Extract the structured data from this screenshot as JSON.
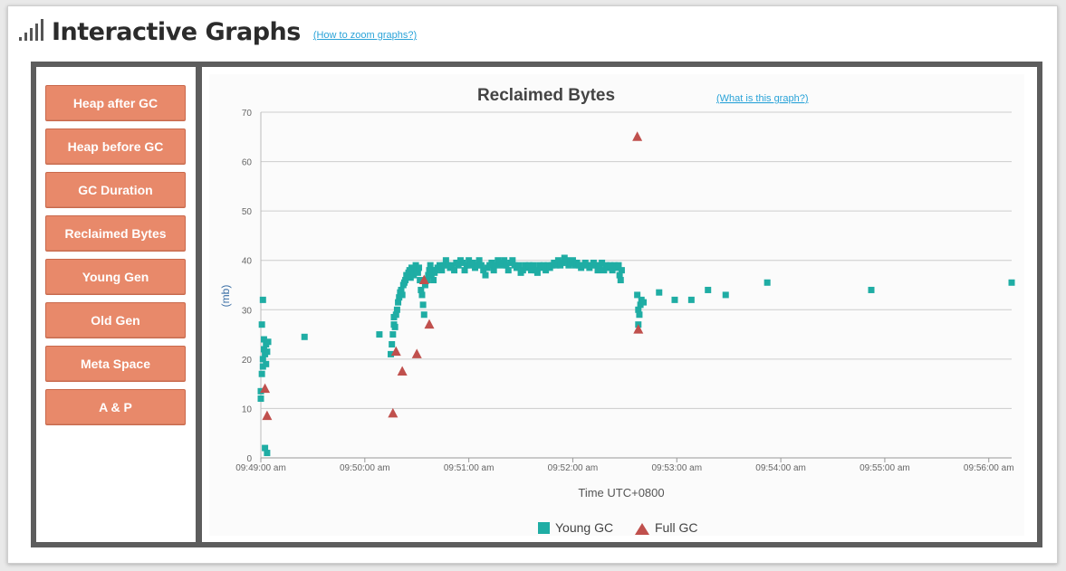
{
  "header": {
    "title": "Interactive Graphs",
    "help_link": "(How to zoom graphs?)"
  },
  "sidebar": {
    "items": [
      {
        "label": "Heap after GC"
      },
      {
        "label": "Heap before GC"
      },
      {
        "label": "GC Duration"
      },
      {
        "label": "Reclaimed Bytes"
      },
      {
        "label": "Young Gen"
      },
      {
        "label": "Old Gen"
      },
      {
        "label": "Meta Space"
      },
      {
        "label": "A & P"
      }
    ]
  },
  "chart_info": {
    "help_link": "(What is this graph?)"
  },
  "colors": {
    "button": "#e8896a",
    "young_gc": "#1fada4",
    "full_gc": "#c0504d",
    "link": "#2aa3d8"
  },
  "chart_data": {
    "type": "scatter",
    "title": "Reclaimed Bytes",
    "xlabel": "Time UTC+0800",
    "ylabel": "(mb)",
    "ylim": [
      0,
      70
    ],
    "yticks": [
      0,
      10,
      20,
      30,
      40,
      50,
      60,
      70
    ],
    "xlim_minutes": [
      0,
      7.22
    ],
    "xticks": [
      "09:49:00 am",
      "09:50:00 am",
      "09:51:00 am",
      "09:52:00 am",
      "09:53:00 am",
      "09:54:00 am",
      "09:55:00 am",
      "09:56:00 am"
    ],
    "grid": true,
    "legend": "bottom-center",
    "series": [
      {
        "name": "Young GC",
        "marker": "square",
        "points": [
          [
            0.0,
            12
          ],
          [
            0.0,
            13.5
          ],
          [
            0.01,
            27
          ],
          [
            0.02,
            32
          ],
          [
            0.01,
            17
          ],
          [
            0.02,
            18.5
          ],
          [
            0.02,
            20
          ],
          [
            0.03,
            22
          ],
          [
            0.03,
            24
          ],
          [
            0.04,
            21
          ],
          [
            0.05,
            23
          ],
          [
            0.05,
            19
          ],
          [
            0.06,
            21.5
          ],
          [
            0.07,
            23.5
          ],
          [
            0.04,
            2
          ],
          [
            0.06,
            1
          ],
          [
            0.42,
            24.5
          ],
          [
            1.14,
            25
          ],
          [
            1.25,
            21
          ],
          [
            1.26,
            23
          ],
          [
            1.27,
            25
          ],
          [
            1.28,
            27
          ],
          [
            1.28,
            28.5
          ],
          [
            1.29,
            26.5
          ],
          [
            1.3,
            29
          ],
          [
            1.31,
            30
          ],
          [
            1.32,
            31.5
          ],
          [
            1.33,
            32.5
          ],
          [
            1.34,
            33.5
          ],
          [
            1.35,
            34
          ],
          [
            1.36,
            33
          ],
          [
            1.37,
            35
          ],
          [
            1.38,
            35.5
          ],
          [
            1.39,
            36
          ],
          [
            1.4,
            37
          ],
          [
            1.42,
            37.5
          ],
          [
            1.43,
            38
          ],
          [
            1.44,
            36.5
          ],
          [
            1.45,
            38.5
          ],
          [
            1.47,
            37
          ],
          [
            1.48,
            38
          ],
          [
            1.49,
            39
          ],
          [
            1.5,
            38
          ],
          [
            1.51,
            37.5
          ],
          [
            1.52,
            38.5
          ],
          [
            1.53,
            36
          ],
          [
            1.54,
            34
          ],
          [
            1.55,
            33
          ],
          [
            1.56,
            31
          ],
          [
            1.57,
            29
          ],
          [
            1.58,
            35
          ],
          [
            1.6,
            36
          ],
          [
            1.61,
            37
          ],
          [
            1.62,
            38
          ],
          [
            1.63,
            39
          ],
          [
            1.64,
            37
          ],
          [
            1.65,
            38
          ],
          [
            1.66,
            36
          ],
          [
            1.67,
            37.5
          ],
          [
            1.68,
            38
          ],
          [
            1.7,
            38.5
          ],
          [
            1.72,
            39
          ],
          [
            1.74,
            38
          ],
          [
            1.76,
            39
          ],
          [
            1.78,
            40
          ],
          [
            1.8,
            39
          ],
          [
            1.82,
            38.5
          ],
          [
            1.84,
            39
          ],
          [
            1.86,
            38
          ],
          [
            1.88,
            39.5
          ],
          [
            1.9,
            39
          ],
          [
            1.92,
            40
          ],
          [
            1.94,
            39.5
          ],
          [
            1.96,
            38
          ],
          [
            1.98,
            39
          ],
          [
            2.0,
            40
          ],
          [
            2.02,
            39
          ],
          [
            2.04,
            39.5
          ],
          [
            2.06,
            38.5
          ],
          [
            2.08,
            39
          ],
          [
            2.1,
            40
          ],
          [
            2.12,
            39
          ],
          [
            2.14,
            38
          ],
          [
            2.16,
            37
          ],
          [
            2.18,
            38.5
          ],
          [
            2.2,
            39
          ],
          [
            2.22,
            39.5
          ],
          [
            2.24,
            38
          ],
          [
            2.26,
            39
          ],
          [
            2.28,
            40
          ],
          [
            2.3,
            39.5
          ],
          [
            2.32,
            39
          ],
          [
            2.34,
            40
          ],
          [
            2.36,
            39
          ],
          [
            2.38,
            38
          ],
          [
            2.4,
            39.5
          ],
          [
            2.42,
            40
          ],
          [
            2.44,
            39
          ],
          [
            2.46,
            38.5
          ],
          [
            2.48,
            39
          ],
          [
            2.5,
            37.5
          ],
          [
            2.52,
            38
          ],
          [
            2.54,
            39
          ],
          [
            2.56,
            38.5
          ],
          [
            2.58,
            39
          ],
          [
            2.6,
            38
          ],
          [
            2.62,
            39
          ],
          [
            2.64,
            38
          ],
          [
            2.66,
            37.5
          ],
          [
            2.68,
            39
          ],
          [
            2.7,
            38.5
          ],
          [
            2.72,
            39
          ],
          [
            2.74,
            38
          ],
          [
            2.76,
            39
          ],
          [
            2.78,
            38.5
          ],
          [
            2.8,
            39
          ],
          [
            2.82,
            39.5
          ],
          [
            2.84,
            39
          ],
          [
            2.86,
            40
          ],
          [
            2.88,
            39
          ],
          [
            2.9,
            39.5
          ],
          [
            2.92,
            40.5
          ],
          [
            2.94,
            40
          ],
          [
            2.96,
            39
          ],
          [
            2.98,
            39.5
          ],
          [
            3.0,
            40
          ],
          [
            3.02,
            39
          ],
          [
            3.04,
            39.5
          ],
          [
            3.06,
            39
          ],
          [
            3.08,
            38.5
          ],
          [
            3.1,
            39
          ],
          [
            3.12,
            39.5
          ],
          [
            3.14,
            39
          ],
          [
            3.16,
            38.5
          ],
          [
            3.18,
            39
          ],
          [
            3.2,
            39.5
          ],
          [
            3.22,
            39
          ],
          [
            3.24,
            38
          ],
          [
            3.26,
            39
          ],
          [
            3.28,
            39.5
          ],
          [
            3.3,
            38
          ],
          [
            3.32,
            39
          ],
          [
            3.34,
            38.5
          ],
          [
            3.36,
            39
          ],
          [
            3.38,
            38
          ],
          [
            3.4,
            39
          ],
          [
            3.42,
            38.5
          ],
          [
            3.44,
            39
          ],
          [
            3.45,
            37
          ],
          [
            3.46,
            36
          ],
          [
            3.47,
            38
          ],
          [
            3.62,
            33
          ],
          [
            3.63,
            30
          ],
          [
            3.64,
            29
          ],
          [
            3.65,
            31
          ],
          [
            3.66,
            32
          ],
          [
            3.68,
            31.5
          ],
          [
            3.63,
            27
          ],
          [
            3.83,
            33.5
          ],
          [
            3.98,
            32
          ],
          [
            4.14,
            32
          ],
          [
            4.3,
            34
          ],
          [
            4.47,
            33
          ],
          [
            4.87,
            35.5
          ],
          [
            5.87,
            34
          ],
          [
            7.22,
            35.5
          ]
        ]
      },
      {
        "name": "Full GC",
        "marker": "triangle",
        "points": [
          [
            0.04,
            14
          ],
          [
            0.06,
            8.5
          ],
          [
            1.27,
            9
          ],
          [
            1.3,
            21.5
          ],
          [
            1.36,
            17.5
          ],
          [
            1.5,
            21
          ],
          [
            1.57,
            36
          ],
          [
            1.62,
            27
          ],
          [
            3.62,
            65
          ],
          [
            3.63,
            26
          ]
        ]
      }
    ]
  }
}
